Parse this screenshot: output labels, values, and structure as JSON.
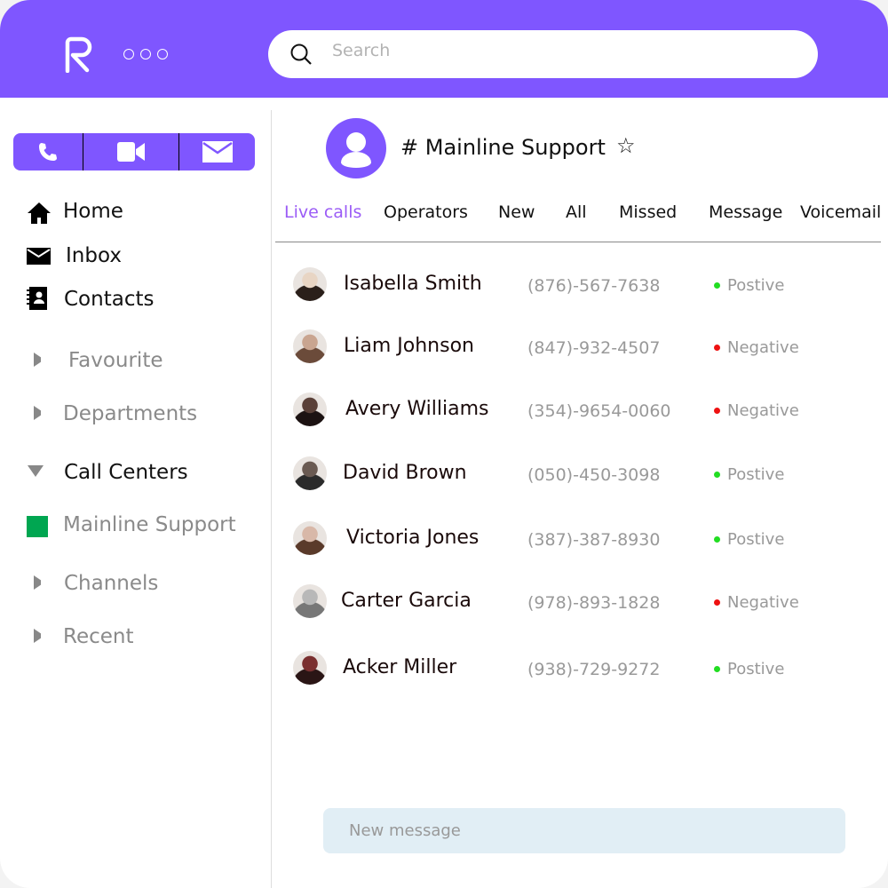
{
  "colors": {
    "brand": "#7f56ff",
    "positive": "#22dd22",
    "negative": "#ee1111",
    "channel_square": "#00a651"
  },
  "header": {
    "logo_letter": "R",
    "search_placeholder": "Search"
  },
  "sidebar": {
    "actions": [
      "phone-icon",
      "video-icon",
      "mail-icon"
    ],
    "items": [
      {
        "label": "Home",
        "icon": "home-icon"
      },
      {
        "label": "Inbox",
        "icon": "mail-icon"
      },
      {
        "label": "Contacts",
        "icon": "contacts-book-icon"
      },
      {
        "label": "Favourite",
        "icon": "caret-right-icon"
      },
      {
        "label": "Departments",
        "icon": "caret-right-icon"
      },
      {
        "label": "Call Centers",
        "icon": "caret-down-icon"
      },
      {
        "label": "Mainline Support",
        "icon": "green-square-icon"
      },
      {
        "label": "Channels",
        "icon": "caret-right-icon"
      },
      {
        "label": "Recent",
        "icon": "caret-right-icon"
      }
    ]
  },
  "channel": {
    "title": "# Mainline Support",
    "star": "☆"
  },
  "tabs": [
    "Live calls",
    "Operators",
    "New",
    "All",
    "Missed",
    "Message",
    "Voicemail"
  ],
  "active_tab": "Live calls",
  "calls": [
    {
      "name": "Isabella Smith",
      "phone": "(876)-567-7638",
      "status": "Postive",
      "sentiment": "positive"
    },
    {
      "name": "Liam Johnson",
      "phone": "(847)-932-4507",
      "status": "Negative",
      "sentiment": "negative"
    },
    {
      "name": "Avery Williams",
      "phone": "(354)-9654-0060",
      "status": "Negative",
      "sentiment": "negative"
    },
    {
      "name": "David  Brown",
      "phone": "(050)-450-3098",
      "status": "Postive",
      "sentiment": "positive"
    },
    {
      "name": "Victoria Jones",
      "phone": "(387)-387-8930",
      "status": "Postive",
      "sentiment": "positive"
    },
    {
      "name": "Carter Garcia",
      "phone": "(978)-893-1828",
      "status": "Negative",
      "sentiment": "negative"
    },
    {
      "name": "Acker Miller",
      "phone": "(938)-729-9272",
      "status": "Postive",
      "sentiment": "positive"
    }
  ],
  "composer": {
    "placeholder": "New message"
  }
}
